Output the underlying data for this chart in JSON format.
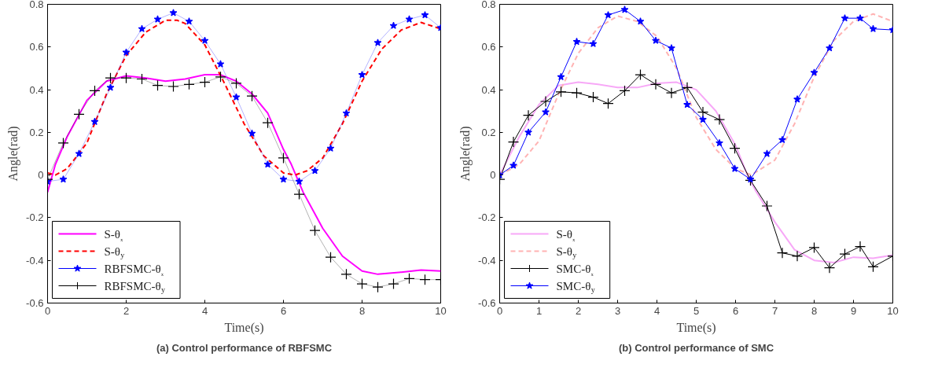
{
  "chart_data": [
    {
      "type": "line",
      "title": "(a) Control performance of RBFSMC",
      "xlabel": "Time(s)",
      "ylabel": "Angle(rad)",
      "xlim": [
        0,
        10
      ],
      "xticks": [
        0,
        2,
        4,
        6,
        8,
        10
      ],
      "ylim": [
        -0.6,
        0.8
      ],
      "yticks": [
        -0.6,
        -0.4,
        -0.2,
        0,
        0.2,
        0.4,
        0.6,
        0.8
      ],
      "grid": false,
      "legend": "bottom left",
      "series": [
        {
          "name": "S-θₓ",
          "color": "#ff00ff",
          "line_style": "solid",
          "marker": "none",
          "x": [
            0,
            0.2,
            0.5,
            1,
            1.5,
            2,
            2.5,
            3,
            3.5,
            4,
            4.4,
            4.8,
            5.2,
            5.6,
            6,
            6.2,
            6.5,
            7,
            7.5,
            8,
            8.4,
            9,
            9.5,
            10
          ],
          "values": [
            -0.08,
            0.05,
            0.18,
            0.35,
            0.44,
            0.465,
            0.455,
            0.44,
            0.45,
            0.47,
            0.47,
            0.44,
            0.38,
            0.29,
            0.12,
            0.05,
            -0.08,
            -0.25,
            -0.38,
            -0.45,
            -0.465,
            -0.455,
            -0.445,
            -0.45
          ]
        },
        {
          "name": "S-θ$_{y}$",
          "color": "#ff0000",
          "line_style": "dashed",
          "marker": "none",
          "x": [
            0,
            0.2,
            0.5,
            1,
            1.5,
            2,
            2.5,
            3,
            3.3,
            3.5,
            4,
            4.5,
            5,
            5.5,
            6,
            6.3,
            6.6,
            7,
            7.5,
            8,
            8.5,
            9,
            9.5,
            10
          ],
          "values": [
            0.01,
            0.0,
            0.03,
            0.15,
            0.38,
            0.56,
            0.67,
            0.725,
            0.725,
            0.71,
            0.61,
            0.43,
            0.24,
            0.09,
            0.01,
            0.0,
            0.02,
            0.08,
            0.24,
            0.44,
            0.59,
            0.68,
            0.715,
            0.685
          ]
        },
        {
          "name": "RBFSMC-θₓ",
          "color": "#0000ff",
          "line_style": "solid",
          "marker": "star",
          "x": [
            0,
            0.4,
            0.8,
            1.2,
            1.6,
            2.0,
            2.4,
            2.8,
            3.2,
            3.6,
            4.0,
            4.4,
            4.8,
            5.2,
            5.6,
            6.0,
            6.4,
            6.8,
            7.2,
            7.6,
            8.0,
            8.4,
            8.8,
            9.2,
            9.6,
            10
          ],
          "values": [
            -0.03,
            -0.02,
            0.1,
            0.25,
            0.41,
            0.575,
            0.685,
            0.73,
            0.76,
            0.72,
            0.63,
            0.52,
            0.365,
            0.195,
            0.05,
            -0.02,
            -0.03,
            0.02,
            0.125,
            0.29,
            0.47,
            0.62,
            0.7,
            0.73,
            0.75,
            0.69
          ]
        },
        {
          "name": "RBFSMC-θ$_{y}$",
          "color": "#000000",
          "line_style": "solid",
          "marker": "cross",
          "x": [
            0,
            0.4,
            0.8,
            1.2,
            1.6,
            2.0,
            2.4,
            2.8,
            3.2,
            3.6,
            4.0,
            4.4,
            4.8,
            5.2,
            5.6,
            6.0,
            6.4,
            6.8,
            7.2,
            7.6,
            8.0,
            8.4,
            8.8,
            9.2,
            9.6,
            10
          ],
          "values": [
            -0.02,
            0.15,
            0.285,
            0.395,
            0.455,
            0.455,
            0.45,
            0.42,
            0.415,
            0.425,
            0.435,
            0.46,
            0.43,
            0.37,
            0.245,
            0.08,
            -0.09,
            -0.26,
            -0.385,
            -0.465,
            -0.51,
            -0.525,
            -0.51,
            -0.485,
            -0.49,
            -0.49
          ]
        }
      ]
    },
    {
      "type": "line",
      "title": "(b) Control performance of SMC",
      "xlabel": "Time(s)",
      "ylabel": "Angle(rad)",
      "xlim": [
        0,
        10
      ],
      "xticks": [
        0,
        1,
        2,
        3,
        4,
        5,
        6,
        7,
        8,
        9,
        10
      ],
      "ylim": [
        -0.6,
        0.8
      ],
      "yticks": [
        -0.6,
        -0.4,
        -0.2,
        0,
        0.2,
        0.4,
        0.6,
        0.8
      ],
      "grid": false,
      "legend": "bottom left",
      "series": [
        {
          "name": "S-θₓ",
          "color": "#f7a8f7",
          "line_style": "solid",
          "marker": "none",
          "x": [
            0,
            0.5,
            1,
            1.5,
            2,
            2.5,
            3,
            3.5,
            4,
            4.5,
            5,
            5.5,
            6,
            6.3,
            6.5,
            7,
            7.5,
            8,
            8.5,
            9,
            9.5,
            10
          ],
          "values": [
            0.0,
            0.18,
            0.33,
            0.42,
            0.435,
            0.425,
            0.41,
            0.41,
            0.43,
            0.435,
            0.4,
            0.3,
            0.14,
            0.0,
            -0.07,
            -0.22,
            -0.35,
            -0.4,
            -0.41,
            -0.385,
            -0.39,
            -0.375
          ]
        },
        {
          "name": "S-θ$_{y}$",
          "color": "#ffb3b3",
          "line_style": "dashed",
          "marker": "none",
          "x": [
            0,
            0.5,
            1,
            1.5,
            2,
            2.5,
            3,
            3.5,
            4,
            4.5,
            5,
            5.5,
            6,
            6.4,
            7,
            7.5,
            8,
            8.5,
            9,
            9.5,
            10
          ],
          "values": [
            0.0,
            0.05,
            0.16,
            0.38,
            0.57,
            0.69,
            0.745,
            0.72,
            0.65,
            0.5,
            0.27,
            0.12,
            0.03,
            0.0,
            0.07,
            0.24,
            0.46,
            0.63,
            0.72,
            0.755,
            0.72
          ]
        },
        {
          "name": "SMC-θₓ",
          "color": "#000000",
          "line_style": "solid",
          "marker": "cross",
          "x": [
            0,
            0.35,
            0.73,
            1.17,
            1.56,
            1.96,
            2.38,
            2.76,
            3.18,
            3.58,
            3.97,
            4.37,
            4.77,
            5.17,
            5.59,
            5.98,
            6.38,
            6.8,
            7.19,
            7.57,
            8.0,
            8.39,
            8.78,
            9.17,
            9.5,
            10
          ],
          "values": [
            -0.02,
            0.155,
            0.28,
            0.345,
            0.39,
            0.385,
            0.365,
            0.335,
            0.395,
            0.47,
            0.425,
            0.385,
            0.41,
            0.295,
            0.26,
            0.125,
            -0.025,
            -0.145,
            -0.365,
            -0.38,
            -0.34,
            -0.435,
            -0.37,
            -0.335,
            -0.43,
            -0.38
          ]
        },
        {
          "name": "SMC-θ$_{y}$",
          "color": "#0000ff",
          "line_style": "solid",
          "marker": "star",
          "x": [
            0,
            0.35,
            0.73,
            1.17,
            1.56,
            1.96,
            2.38,
            2.76,
            3.18,
            3.58,
            3.97,
            4.37,
            4.77,
            5.17,
            5.59,
            5.98,
            6.38,
            6.8,
            7.19,
            7.57,
            8.0,
            8.39,
            8.78,
            9.17,
            9.5,
            10
          ],
          "values": [
            0.0,
            0.045,
            0.2,
            0.295,
            0.46,
            0.625,
            0.615,
            0.75,
            0.775,
            0.72,
            0.63,
            0.595,
            0.33,
            0.26,
            0.15,
            0.03,
            -0.02,
            0.1,
            0.165,
            0.355,
            0.48,
            0.595,
            0.735,
            0.735,
            0.685,
            0.68
          ]
        }
      ]
    }
  ]
}
